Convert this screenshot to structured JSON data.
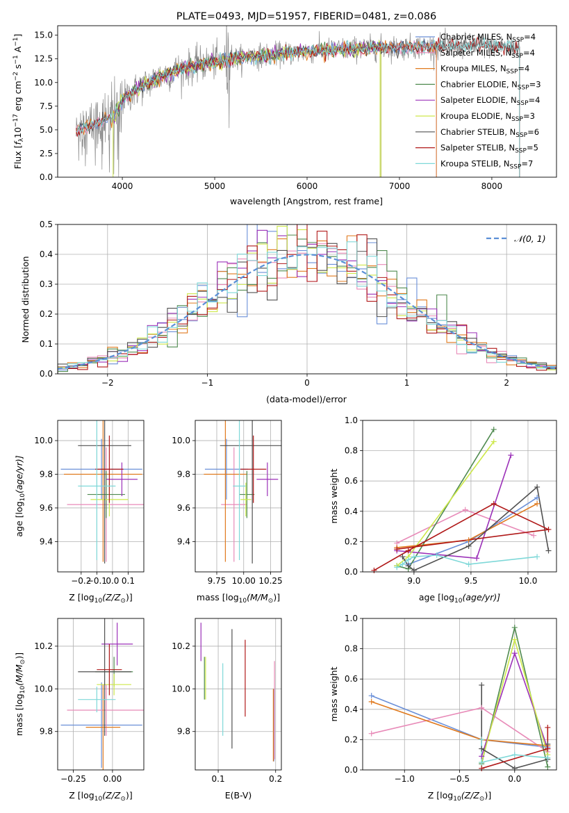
{
  "figure_title": "PLATE=0493, MJD=51957, FIBERID=0481, z=0.086",
  "colors": {
    "Chabrier MILES": "#6a8fd8",
    "Salpeter MILES": "#e88ab8",
    "Kroupa MILES": "#e07a1e",
    "Chabrier ELODIE": "#4f8a4f",
    "Salpeter ELODIE": "#9b30b8",
    "Kroupa ELODIE": "#cde84a",
    "Chabrier STELIB": "#505050",
    "Salpeter STELIB": "#b01818",
    "Kroupa STELIB": "#7ed8d8",
    "normal": "#5b8fd6",
    "grid": "#b0b0b0"
  },
  "chart_data": [
    {
      "id": "spectrum",
      "type": "line",
      "title": "PLATE=0493, MJD=51957, FIBERID=0481, z=0.086",
      "xlabel": "wavelength [Angstrom, rest frame]",
      "ylabel_parts": [
        "Flux [",
        "f",
        "λ",
        "10",
        "−17",
        " erg cm",
        "−2",
        " s",
        "−1",
        " A",
        "−1",
        "]"
      ],
      "xlim": [
        3300,
        8700
      ],
      "ylim": [
        0,
        16
      ],
      "xticks": [
        4000,
        5000,
        6000,
        7000,
        8000
      ],
      "yticks": [
        0.0,
        2.5,
        5.0,
        7.5,
        10.0,
        12.5,
        15.0
      ],
      "grid": false,
      "legend_position": "top-right",
      "series": [
        {
          "name": "Chabrier MILES",
          "nssp": "4"
        },
        {
          "name": "Salpeter MILES",
          "nssp": "4"
        },
        {
          "name": "Kroupa MILES",
          "nssp": "4"
        },
        {
          "name": "Chabrier ELODIE",
          "nssp": "3"
        },
        {
          "name": "Salpeter ELODIE",
          "nssp": "4"
        },
        {
          "name": "Kroupa ELODIE",
          "nssp": "3"
        },
        {
          "name": "Chabrier STELIB",
          "nssp": "6"
        },
        {
          "name": "Salpeter STELIB",
          "nssp": "5"
        },
        {
          "name": "Kroupa STELIB",
          "nssp": "7"
        }
      ],
      "continuum": [
        [
          3500,
          4.8
        ],
        [
          3700,
          5.6
        ],
        [
          3900,
          6.3
        ],
        [
          4000,
          8.2
        ],
        [
          4200,
          9.5
        ],
        [
          4400,
          10.6
        ],
        [
          4600,
          11.3
        ],
        [
          4800,
          11.8
        ],
        [
          5000,
          12.2
        ],
        [
          5200,
          12.5
        ],
        [
          5400,
          12.8
        ],
        [
          5600,
          12.9
        ],
        [
          5800,
          13.1
        ],
        [
          6000,
          13.3
        ],
        [
          6200,
          13.4
        ],
        [
          6400,
          13.5
        ],
        [
          6600,
          13.6
        ],
        [
          6800,
          13.7
        ],
        [
          7000,
          13.7
        ],
        [
          7200,
          13.8
        ],
        [
          7400,
          13.8
        ],
        [
          7800,
          13.9
        ],
        [
          8200,
          13.8
        ],
        [
          8300,
          13.8
        ]
      ],
      "observed_range": [
        3500,
        8300
      ],
      "model_ranges": {
        "Chabrier MILES": [
          3500,
          7400
        ],
        "Salpeter MILES": [
          3500,
          7400
        ],
        "Kroupa MILES": [
          3500,
          7400
        ],
        "Chabrier ELODIE": [
          3900,
          6800
        ],
        "Salpeter ELODIE": [
          3900,
          6800
        ],
        "Kroupa ELODIE": [
          3900,
          6800
        ],
        "Chabrier STELIB": [
          3500,
          8300
        ],
        "Salpeter STELIB": [
          3500,
          8300
        ],
        "Kroupa STELIB": [
          3500,
          8300
        ]
      }
    },
    {
      "id": "residuals",
      "type": "histogram",
      "xlabel": "(data-model)/error",
      "ylabel": "Normed distribution",
      "xlim": [
        -2.5,
        2.5
      ],
      "ylim": [
        0,
        0.5
      ],
      "xticks": [
        -2,
        -1,
        0,
        1,
        2
      ],
      "yticks": [
        0.0,
        0.1,
        0.2,
        0.3,
        0.4,
        0.5
      ],
      "grid": true,
      "legend_position": "top-right",
      "legend_label": "𝒩(0, 1)",
      "bin_edges_start": -2.5,
      "bin_width": 0.1,
      "gaussian": {
        "mean": 0,
        "sigma": 1
      }
    },
    {
      "id": "age_vs_Z",
      "type": "errorbar",
      "xlabel_parts": [
        "Z [log",
        "10",
        "(Z/Z",
        "⊙",
        ")]"
      ],
      "ylabel_parts": [
        "age  [log",
        "10",
        "(age/yr)]"
      ],
      "xlim": [
        -0.35,
        0.2
      ],
      "ylim": [
        9.22,
        10.12
      ],
      "xticks": [
        -0.2,
        -0.1,
        0.0,
        0.1
      ],
      "yticks": [
        9.4,
        9.6,
        9.8,
        10.0
      ],
      "grid": true,
      "points": [
        {
          "model": "Chabrier MILES",
          "x": -0.07,
          "xerr": 0.26,
          "y": 9.83,
          "yerr": 0.18
        },
        {
          "model": "Salpeter MILES",
          "x": -0.04,
          "xerr": 0.25,
          "y": 9.62,
          "yerr": 0.34
        },
        {
          "model": "Kroupa MILES",
          "x": -0.06,
          "xerr": 0.25,
          "y": 9.8,
          "yerr": 0.52
        },
        {
          "model": "Chabrier ELODIE",
          "x": -0.04,
          "xerr": 0.12,
          "y": 9.68,
          "yerr": 0.14
        },
        {
          "model": "Salpeter ELODIE",
          "x": 0.06,
          "xerr": 0.1,
          "y": 9.77,
          "yerr": 0.1
        },
        {
          "model": "Kroupa ELODIE",
          "x": -0.02,
          "xerr": 0.12,
          "y": 9.65,
          "yerr": 0.1
        },
        {
          "model": "Chabrier STELIB",
          "x": -0.05,
          "xerr": 0.17,
          "y": 9.97,
          "yerr": 0.7
        },
        {
          "model": "Salpeter STELIB",
          "x": -0.02,
          "xerr": 0.09,
          "y": 9.83,
          "yerr": 0.2
        },
        {
          "model": "Kroupa STELIB",
          "x": -0.1,
          "xerr": 0.12,
          "y": 9.73,
          "yerr": 0.44
        }
      ]
    },
    {
      "id": "age_vs_mass",
      "type": "errorbar",
      "xlabel_parts": [
        "mass [log",
        "10",
        "(M/M",
        "⊙",
        ")]"
      ],
      "xlim": [
        9.55,
        10.35
      ],
      "ylim": [
        9.22,
        10.12
      ],
      "xticks": [
        9.75,
        10.0,
        10.25
      ],
      "yticks": [
        9.4,
        9.6,
        9.8,
        10.0
      ],
      "grid": true,
      "points": [
        {
          "model": "Chabrier MILES",
          "x": 9.84,
          "xerr": 0.2,
          "y": 9.83,
          "yerr": 0.18
        },
        {
          "model": "Salpeter MILES",
          "x": 9.91,
          "xerr": 0.12,
          "y": 9.62,
          "yerr": 0.34
        },
        {
          "model": "Kroupa MILES",
          "x": 9.83,
          "xerr": 0.2,
          "y": 9.8,
          "yerr": 0.52
        },
        {
          "model": "Chabrier ELODIE",
          "x": 10.03,
          "xerr": 0.07,
          "y": 9.68,
          "yerr": 0.14
        },
        {
          "model": "Salpeter ELODIE",
          "x": 10.22,
          "xerr": 0.1,
          "y": 9.77,
          "yerr": 0.1
        },
        {
          "model": "Kroupa ELODIE",
          "x": 10.02,
          "xerr": 0.05,
          "y": 9.65,
          "yerr": 0.1
        },
        {
          "model": "Chabrier STELIB",
          "x": 10.08,
          "xerr": 0.3,
          "y": 9.97,
          "yerr": 0.7
        },
        {
          "model": "Salpeter STELIB",
          "x": 10.09,
          "xerr": 0.12,
          "y": 9.83,
          "yerr": 0.2
        },
        {
          "model": "Kroupa STELIB",
          "x": 9.96,
          "xerr": 0.06,
          "y": 9.73,
          "yerr": 0.44
        }
      ]
    },
    {
      "id": "weight_vs_age",
      "type": "line",
      "xlabel_parts": [
        "age  [log",
        "10",
        "(age/yr)]"
      ],
      "ylabel": "mass weight",
      "xlim": [
        8.55,
        10.25
      ],
      "ylim": [
        0,
        1.0
      ],
      "xticks": [
        9.0,
        9.5,
        10.0
      ],
      "yticks": [
        0.0,
        0.2,
        0.4,
        0.6,
        0.8,
        1.0
      ],
      "grid": true,
      "series": [
        {
          "model": "Chabrier MILES",
          "x": [
            8.95,
            9.48,
            10.08
          ],
          "y": [
            0.05,
            0.2,
            0.49
          ]
        },
        {
          "model": "Salpeter MILES",
          "x": [
            8.85,
            9.45,
            10.05
          ],
          "y": [
            0.19,
            0.41,
            0.24
          ]
        },
        {
          "model": "Kroupa MILES",
          "x": [
            8.85,
            9.48,
            10.08
          ],
          "y": [
            0.16,
            0.21,
            0.45
          ]
        },
        {
          "model": "Chabrier ELODIE",
          "x": [
            8.85,
            8.95,
            9.7
          ],
          "y": [
            0.04,
            0.02,
            0.94
          ]
        },
        {
          "model": "Salpeter ELODIE",
          "x": [
            8.85,
            9.55,
            9.85
          ],
          "y": [
            0.14,
            0.09,
            0.77
          ]
        },
        {
          "model": "Kroupa ELODIE",
          "x": [
            8.85,
            8.95,
            9.7
          ],
          "y": [
            0.04,
            0.1,
            0.86
          ]
        },
        {
          "model": "Chabrier STELIB",
          "x": [
            8.9,
            8.95,
            9.0,
            9.48,
            10.08,
            10.18
          ],
          "y": [
            0.1,
            0.04,
            0.01,
            0.17,
            0.56,
            0.14
          ]
        },
        {
          "model": "Salpeter STELIB",
          "x": [
            8.65,
            8.95,
            9.7,
            10.18,
            8.85
          ],
          "y": [
            0.01,
            0.14,
            0.45,
            0.28,
            0.15
          ]
        },
        {
          "model": "Kroupa STELIB",
          "x": [
            8.85,
            8.9,
            8.95,
            9.0,
            9.2,
            9.48,
            10.08
          ],
          "y": [
            0.03,
            0.05,
            0.08,
            0.1,
            0.11,
            0.05,
            0.1
          ]
        }
      ]
    },
    {
      "id": "mass_vs_Z",
      "type": "errorbar",
      "xlabel_parts": [
        "Z [log",
        "10",
        "(Z/Z",
        "⊙",
        ")]"
      ],
      "ylabel_parts": [
        "mass [log",
        "10",
        "(M/M",
        "⊙",
        ")]"
      ],
      "xlim": [
        -0.35,
        0.2
      ],
      "ylim": [
        9.62,
        10.33
      ],
      "xticks": [
        -0.25,
        0.0
      ],
      "yticks": [
        9.8,
        10.0,
        10.2
      ],
      "grid": true,
      "points": [
        {
          "model": "Chabrier MILES",
          "x": -0.07,
          "xerr": 0.26,
          "y": 9.83,
          "yerr": 0.2
        },
        {
          "model": "Salpeter MILES",
          "x": -0.04,
          "xerr": 0.25,
          "y": 9.9,
          "yerr": 0.12
        },
        {
          "model": "Kroupa MILES",
          "x": -0.06,
          "xerr": 0.11,
          "y": 9.82,
          "yerr": 0.2
        },
        {
          "model": "Chabrier ELODIE",
          "x": 0.01,
          "xerr": 0.12,
          "y": 10.08,
          "yerr": 0.07
        },
        {
          "model": "Salpeter ELODIE",
          "x": 0.03,
          "xerr": 0.1,
          "y": 10.21,
          "yerr": 0.1
        },
        {
          "model": "Kroupa ELODIE",
          "x": 0.01,
          "xerr": 0.11,
          "y": 10.02,
          "yerr": 0.05
        },
        {
          "model": "Chabrier STELIB",
          "x": -0.05,
          "xerr": 0.17,
          "y": 10.08,
          "yerr": 0.3
        },
        {
          "model": "Salpeter STELIB",
          "x": -0.02,
          "xerr": 0.08,
          "y": 10.09,
          "yerr": 0.12
        },
        {
          "model": "Kroupa STELIB",
          "x": -0.1,
          "xerr": 0.12,
          "y": 9.95,
          "yerr": 0.06
        }
      ]
    },
    {
      "id": "mass_vs_ebv",
      "type": "errorbar",
      "xlabel": "E(B-V)",
      "xlim": [
        0.06,
        0.21
      ],
      "ylim": [
        9.62,
        10.33
      ],
      "xticks": [
        0.1,
        0.2
      ],
      "yticks": [
        9.8,
        10.0,
        10.2
      ],
      "grid": true,
      "points": [
        {
          "model": "Chabrier MILES",
          "x": 0.197,
          "y": 9.83,
          "yerr": 0.17
        },
        {
          "model": "Salpeter MILES",
          "x": 0.198,
          "y": 9.9,
          "yerr": 0.23
        },
        {
          "model": "Kroupa MILES",
          "x": 0.196,
          "y": 9.83,
          "yerr": 0.17
        },
        {
          "model": "Chabrier ELODIE",
          "x": 0.076,
          "y": 10.05,
          "yerr": 0.1
        },
        {
          "model": "Salpeter ELODIE",
          "x": 0.07,
          "y": 10.22,
          "yerr": 0.09
        },
        {
          "model": "Kroupa ELODIE",
          "x": 0.078,
          "y": 10.05,
          "yerr": 0.1
        },
        {
          "model": "Chabrier STELIB",
          "x": 0.124,
          "y": 10.0,
          "yerr": 0.28
        },
        {
          "model": "Salpeter STELIB",
          "x": 0.147,
          "y": 10.05,
          "yerr": 0.18
        },
        {
          "model": "Kroupa STELIB",
          "x": 0.108,
          "y": 9.95,
          "yerr": 0.17
        }
      ]
    },
    {
      "id": "weight_vs_Z",
      "type": "line",
      "xlabel_parts": [
        "Z [log",
        "10",
        "(Z/Z",
        "⊙",
        ")]"
      ],
      "ylabel": "mass weight",
      "xlim": [
        -1.38,
        0.38
      ],
      "ylim": [
        0,
        1.0
      ],
      "xticks": [
        -1.0,
        -0.5,
        0.0
      ],
      "yticks": [
        0.0,
        0.2,
        0.4,
        0.6,
        0.8,
        1.0
      ],
      "grid": true,
      "series": [
        {
          "model": "Chabrier MILES",
          "x": [
            -1.3,
            -0.3,
            0.3
          ],
          "y": [
            0.49,
            0.2,
            0.15
          ]
        },
        {
          "model": "Salpeter MILES",
          "x": [
            -1.3,
            -0.3,
            0.3
          ],
          "y": [
            0.24,
            0.41,
            0.12
          ]
        },
        {
          "model": "Kroupa MILES",
          "x": [
            -1.3,
            -0.3,
            0.3
          ],
          "y": [
            0.45,
            0.2,
            0.16
          ]
        },
        {
          "model": "Chabrier ELODIE",
          "x": [
            -0.3,
            0.0,
            0.3
          ],
          "y": [
            0.04,
            0.94,
            0.02
          ]
        },
        {
          "model": "Salpeter ELODIE",
          "x": [
            -0.3,
            0.0,
            0.3
          ],
          "y": [
            0.09,
            0.77,
            0.14
          ]
        },
        {
          "model": "Kroupa ELODIE",
          "x": [
            -0.3,
            0.0,
            0.3
          ],
          "y": [
            0.05,
            0.86,
            0.1
          ]
        },
        {
          "model": "Chabrier STELIB",
          "x": [
            -0.3,
            -0.3,
            0.0,
            0.3,
            0.3
          ],
          "y": [
            0.56,
            0.14,
            0.01,
            0.07,
            0.17
          ]
        },
        {
          "model": "Salpeter STELIB",
          "x": [
            -0.3,
            0.3,
            0.3
          ],
          "y": [
            0.01,
            0.14,
            0.28
          ]
        },
        {
          "model": "Kroupa STELIB",
          "x": [
            -0.3,
            -0.3,
            0.0,
            0.3
          ],
          "y": [
            0.2,
            0.05,
            0.1,
            0.08
          ]
        }
      ]
    }
  ]
}
